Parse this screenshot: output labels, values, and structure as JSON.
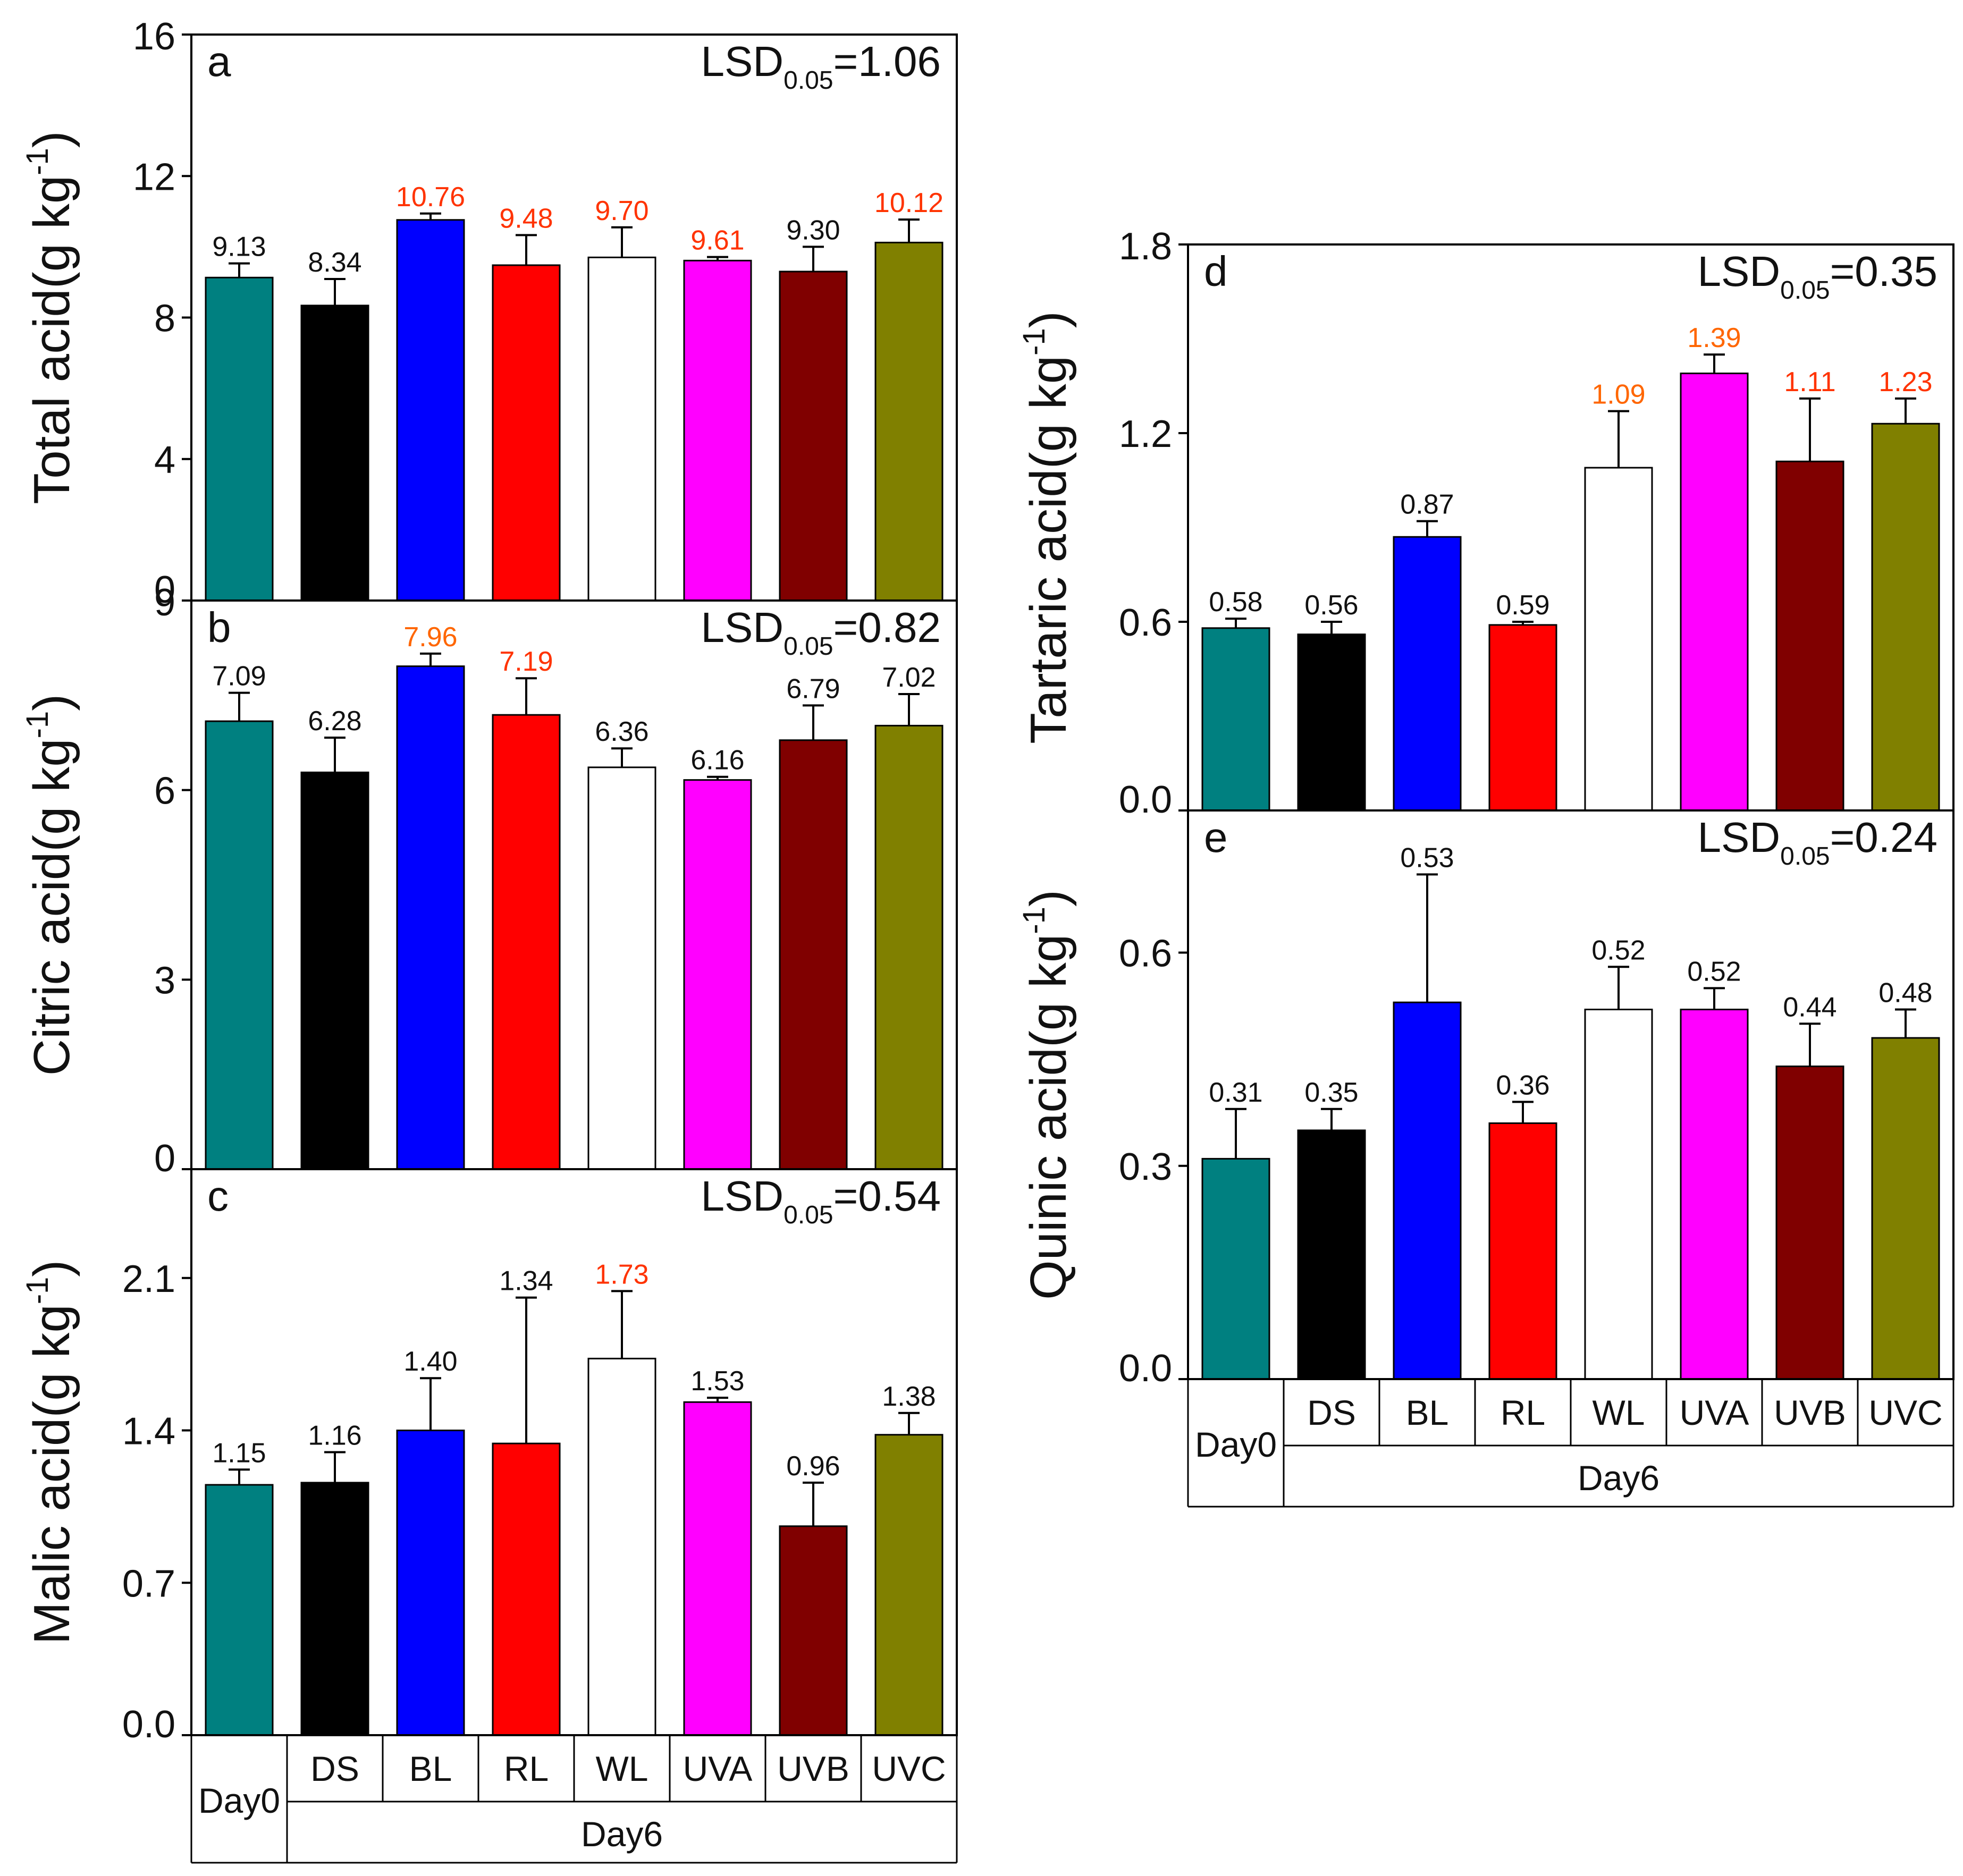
{
  "chart_data": [
    {
      "panel": "a",
      "type": "bar",
      "categories": [
        "Day0",
        "DS",
        "BL",
        "RL",
        "WL",
        "UVA",
        "UVB",
        "UVC"
      ],
      "values": [
        9.13,
        8.34,
        10.76,
        9.48,
        9.7,
        9.61,
        9.3,
        10.12
      ],
      "errors": [
        0.4,
        0.75,
        0.18,
        0.85,
        0.85,
        0.1,
        0.7,
        0.65
      ],
      "value_labels": [
        "9.13",
        "8.34",
        "10.76",
        "9.48",
        "9.70",
        "9.61",
        "9.30",
        "10.12"
      ],
      "label_colors": [
        "#111111",
        "#111111",
        "#ff3300",
        "#ff3300",
        "#ff3300",
        "#ff3300",
        "#111111",
        "#ff3300"
      ],
      "ylabel_main": "Total acid(g kg",
      "ylabel_sup": "-1",
      "ylabel_close": ")",
      "ylim": [
        0,
        16
      ],
      "yticks": [
        "0",
        "4",
        "8",
        "12",
        "16"
      ],
      "ytick_values": [
        0,
        4,
        8,
        12,
        16
      ],
      "lsd": {
        "prefix": "LSD",
        "sub": "0.05",
        "value": "=1.06"
      }
    },
    {
      "panel": "b",
      "type": "bar",
      "categories": [
        "Day0",
        "DS",
        "BL",
        "RL",
        "WL",
        "UVA",
        "UVB",
        "UVC"
      ],
      "values": [
        7.09,
        6.28,
        7.96,
        7.19,
        6.36,
        6.16,
        6.79,
        7.02
      ],
      "errors": [
        0.45,
        0.55,
        0.2,
        0.58,
        0.3,
        0.05,
        0.55,
        0.5
      ],
      "value_labels": [
        "7.09",
        "6.28",
        "7.96",
        "7.19",
        "6.36",
        "6.16",
        "6.79",
        "7.02"
      ],
      "label_colors": [
        "#111111",
        "#111111",
        "#ff6600",
        "#ff3300",
        "#111111",
        "#111111",
        "#111111",
        "#111111"
      ],
      "ylabel_main": "Citric acid(g kg",
      "ylabel_sup": "-1",
      "ylabel_close": ")",
      "ylim": [
        0,
        9
      ],
      "yticks": [
        "0",
        "3",
        "6",
        "9"
      ],
      "ytick_values": [
        0,
        3,
        6,
        9
      ],
      "lsd": {
        "prefix": "LSD",
        "sub": "0.05",
        "value": "=0.82"
      }
    },
    {
      "panel": "c",
      "type": "bar",
      "categories": [
        "Day0",
        "DS",
        "BL",
        "RL",
        "WL",
        "UVA",
        "UVB",
        "UVC"
      ],
      "values": [
        1.15,
        1.16,
        1.4,
        1.34,
        1.73,
        1.53,
        0.96,
        1.38
      ],
      "errors": [
        0.07,
        0.14,
        0.24,
        0.67,
        0.31,
        0.02,
        0.2,
        0.1
      ],
      "value_labels": [
        "1.15",
        "1.16",
        "1.40",
        "1.34",
        "1.73",
        "1.53",
        "0.96",
        "1.38"
      ],
      "label_colors": [
        "#111111",
        "#111111",
        "#111111",
        "#111111",
        "#ff3300",
        "#111111",
        "#111111",
        "#111111"
      ],
      "ylabel_main": "Malic acid(g kg",
      "ylabel_sup": "-1",
      "ylabel_close": ")",
      "ylim": [
        0,
        2.6
      ],
      "yticks": [
        "0.0",
        "0.7",
        "1.4",
        "2.1"
      ],
      "ytick_values": [
        0,
        0.7,
        1.4,
        2.1
      ],
      "lsd": {
        "prefix": "LSD",
        "sub": "0.05",
        "value": "=0.54"
      }
    },
    {
      "panel": "d",
      "type": "bar",
      "categories": [
        "Day0",
        "DS",
        "BL",
        "RL",
        "WL",
        "UVA",
        "UVB",
        "UVC"
      ],
      "values": [
        0.58,
        0.56,
        0.87,
        0.59,
        1.09,
        1.39,
        1.11,
        1.23
      ],
      "errors": [
        0.03,
        0.04,
        0.05,
        0.01,
        0.18,
        0.06,
        0.2,
        0.08
      ],
      "value_labels": [
        "0.58",
        "0.56",
        "0.87",
        "0.59",
        "1.09",
        "1.39",
        "1.11",
        "1.23"
      ],
      "label_colors": [
        "#111111",
        "#111111",
        "#111111",
        "#111111",
        "#ff6600",
        "#ff6600",
        "#ff3300",
        "#ff3300"
      ],
      "ylabel_main": "Tartaric acid(g kg",
      "ylabel_sup": "-1",
      "ylabel_close": ")",
      "ylim": [
        0,
        1.8
      ],
      "yticks": [
        "0.0",
        "0.6",
        "1.2",
        "1.8"
      ],
      "ytick_values": [
        0,
        0.6,
        1.2,
        1.8
      ],
      "lsd": {
        "prefix": "LSD",
        "sub": "0.05",
        "value": "=0.35"
      }
    },
    {
      "panel": "e",
      "type": "bar",
      "categories": [
        "Day0",
        "DS",
        "BL",
        "RL",
        "WL",
        "UVA",
        "UVB",
        "UVC"
      ],
      "values": [
        0.31,
        0.35,
        0.53,
        0.36,
        0.52,
        0.52,
        0.44,
        0.48
      ],
      "errors": [
        0.07,
        0.03,
        0.18,
        0.03,
        0.06,
        0.03,
        0.06,
        0.04
      ],
      "value_labels": [
        "0.31",
        "0.35",
        "0.53",
        "0.36",
        "0.52",
        "0.52",
        "0.44",
        "0.48"
      ],
      "label_colors": [
        "#111111",
        "#111111",
        "#111111",
        "#111111",
        "#111111",
        "#111111",
        "#111111",
        "#111111"
      ],
      "ylabel_main": "Quinic acid(g kg",
      "ylabel_sup": "-1",
      "ylabel_close": ")",
      "ylim": [
        0,
        0.8
      ],
      "yticks": [
        "0.0",
        "0.3",
        "0.6"
      ],
      "ytick_values": [
        0,
        0.3,
        0.6
      ],
      "lsd": {
        "prefix": "LSD",
        "sub": "0.05",
        "value": "=0.24"
      }
    }
  ],
  "category_table": {
    "day0": "Day0",
    "day6": "Day6",
    "treatments": [
      "DS",
      "BL",
      "RL",
      "WL",
      "UVA",
      "UVB",
      "UVC"
    ]
  },
  "colors": {
    "bars": [
      "#008080",
      "#000000",
      "#0000ff",
      "#ff0000",
      "#ffffff",
      "#ff00ff",
      "#800000",
      "#808000"
    ],
    "outline": "#000000"
  }
}
